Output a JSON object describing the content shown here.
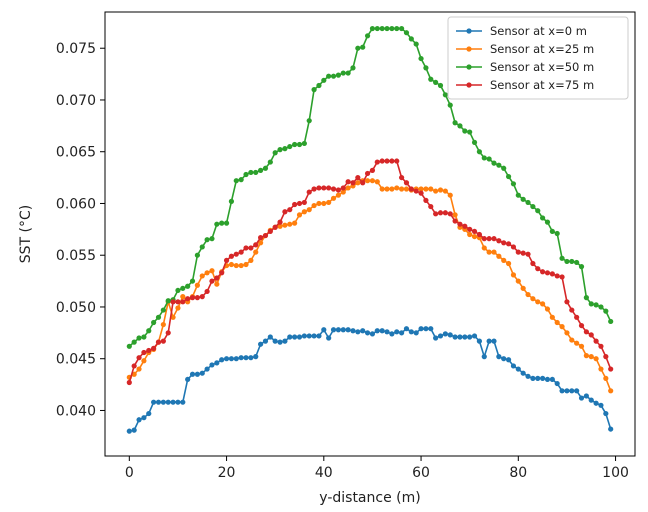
{
  "chart_data": {
    "type": "line",
    "title": "",
    "xlabel": "y-distance (m)",
    "ylabel": "SST (°C)",
    "xlim": [
      -5,
      104
    ],
    "ylim": [
      0.0356,
      0.0785
    ],
    "xticks": [
      0,
      20,
      40,
      60,
      80,
      100
    ],
    "yticks": [
      0.04,
      0.045,
      0.05,
      0.055,
      0.06,
      0.065,
      0.07,
      0.075
    ],
    "ytick_labels": [
      "0.040",
      "0.045",
      "0.050",
      "0.055",
      "0.060",
      "0.065",
      "0.070",
      "0.075"
    ],
    "grid": false,
    "legend_position": "top-right",
    "series": [
      {
        "name": "Sensor at x=0 m",
        "color": "#1f77b4",
        "values": [
          0.038,
          0.0381,
          0.0391,
          0.0393,
          0.0397,
          0.0408,
          0.0408,
          0.0408,
          0.0408,
          0.0408,
          0.0408,
          0.0408,
          0.043,
          0.0435,
          0.0435,
          0.0436,
          0.044,
          0.0444,
          0.0446,
          0.0449,
          0.045,
          0.045,
          0.045,
          0.0451,
          0.0451,
          0.0451,
          0.0452,
          0.0464,
          0.0467,
          0.0471,
          0.0467,
          0.0466,
          0.0467,
          0.0471,
          0.0471,
          0.0471,
          0.0472,
          0.0472,
          0.0472,
          0.0472,
          0.0478,
          0.047,
          0.0478,
          0.0478,
          0.0478,
          0.0478,
          0.0477,
          0.0476,
          0.0477,
          0.0475,
          0.0474,
          0.0477,
          0.0477,
          0.0476,
          0.0474,
          0.0476,
          0.0475,
          0.0479,
          0.0476,
          0.0475,
          0.0479,
          0.0479,
          0.0479,
          0.047,
          0.0472,
          0.0474,
          0.0473,
          0.0471,
          0.0471,
          0.0471,
          0.0471,
          0.0472,
          0.0467,
          0.0452,
          0.0467,
          0.0467,
          0.0452,
          0.045,
          0.0449,
          0.0443,
          0.044,
          0.0436,
          0.0433,
          0.0431,
          0.0431,
          0.0431,
          0.043,
          0.043,
          0.0426,
          0.0419,
          0.0419,
          0.0419,
          0.0419,
          0.0412,
          0.0414,
          0.041,
          0.0407,
          0.0405,
          0.0397,
          0.0382
        ]
      },
      {
        "name": "Sensor at x=25 m",
        "color": "#ff7f0e",
        "values": [
          0.0432,
          0.0435,
          0.044,
          0.0448,
          0.0456,
          0.0459,
          0.0466,
          0.0483,
          0.0505,
          0.049,
          0.0499,
          0.051,
          0.0505,
          0.051,
          0.0521,
          0.053,
          0.0533,
          0.0535,
          0.0522,
          0.0534,
          0.054,
          0.0541,
          0.054,
          0.054,
          0.0541,
          0.0545,
          0.0553,
          0.0562,
          0.0569,
          0.0574,
          0.0577,
          0.0578,
          0.0579,
          0.058,
          0.0581,
          0.0589,
          0.0592,
          0.0594,
          0.0598,
          0.06,
          0.06,
          0.0601,
          0.0605,
          0.0608,
          0.0611,
          0.0615,
          0.0617,
          0.062,
          0.0622,
          0.0622,
          0.0622,
          0.0621,
          0.0614,
          0.0614,
          0.0614,
          0.0615,
          0.0614,
          0.0614,
          0.0613,
          0.0614,
          0.0614,
          0.0614,
          0.0614,
          0.0612,
          0.0613,
          0.0612,
          0.0608,
          0.0589,
          0.0577,
          0.0575,
          0.057,
          0.0568,
          0.0567,
          0.0557,
          0.0553,
          0.0553,
          0.0549,
          0.0545,
          0.0542,
          0.0531,
          0.0525,
          0.0518,
          0.0512,
          0.0508,
          0.0505,
          0.0503,
          0.0498,
          0.049,
          0.0485,
          0.0481,
          0.0475,
          0.0468,
          0.0465,
          0.0462,
          0.0453,
          0.0452,
          0.045,
          0.044,
          0.0431,
          0.0419
        ]
      },
      {
        "name": "Sensor at x=50 m",
        "color": "#2ca02c",
        "values": [
          0.0462,
          0.0466,
          0.047,
          0.0471,
          0.0477,
          0.0485,
          0.049,
          0.0497,
          0.0506,
          0.0507,
          0.0516,
          0.0518,
          0.052,
          0.0525,
          0.055,
          0.0558,
          0.0565,
          0.0566,
          0.058,
          0.0581,
          0.0581,
          0.0602,
          0.0622,
          0.0623,
          0.0628,
          0.063,
          0.063,
          0.0632,
          0.0634,
          0.064,
          0.0649,
          0.0652,
          0.0653,
          0.0655,
          0.0657,
          0.0657,
          0.0658,
          0.068,
          0.071,
          0.0714,
          0.0719,
          0.0723,
          0.0723,
          0.0724,
          0.0726,
          0.0726,
          0.0731,
          0.075,
          0.0751,
          0.0762,
          0.0769,
          0.0769,
          0.0769,
          0.0769,
          0.0769,
          0.0769,
          0.0769,
          0.0765,
          0.0759,
          0.0754,
          0.074,
          0.0731,
          0.072,
          0.0717,
          0.0714,
          0.0705,
          0.0695,
          0.0678,
          0.0675,
          0.067,
          0.0669,
          0.0659,
          0.065,
          0.0644,
          0.0643,
          0.0639,
          0.0637,
          0.0634,
          0.0626,
          0.0619,
          0.0608,
          0.0604,
          0.0601,
          0.0597,
          0.0593,
          0.0586,
          0.0582,
          0.0573,
          0.0571,
          0.0547,
          0.0544,
          0.0544,
          0.0543,
          0.0539,
          0.0509,
          0.0503,
          0.0502,
          0.05,
          0.0496,
          0.0486
        ]
      },
      {
        "name": "Sensor at x=75 m",
        "color": "#d62728",
        "values": [
          0.0427,
          0.0443,
          0.0451,
          0.0456,
          0.0458,
          0.046,
          0.0466,
          0.0467,
          0.0475,
          0.0505,
          0.0505,
          0.0505,
          0.0508,
          0.0509,
          0.0509,
          0.051,
          0.0515,
          0.0525,
          0.0528,
          0.0533,
          0.0545,
          0.0549,
          0.0551,
          0.0553,
          0.0557,
          0.0557,
          0.056,
          0.0567,
          0.0569,
          0.0573,
          0.0577,
          0.0582,
          0.0592,
          0.0594,
          0.0599,
          0.06,
          0.0601,
          0.0611,
          0.0614,
          0.0615,
          0.0615,
          0.0615,
          0.0614,
          0.0613,
          0.0615,
          0.0621,
          0.062,
          0.0625,
          0.062,
          0.0629,
          0.0632,
          0.064,
          0.0641,
          0.0641,
          0.0641,
          0.0641,
          0.0625,
          0.062,
          0.0614,
          0.0612,
          0.061,
          0.0603,
          0.0597,
          0.059,
          0.0591,
          0.0591,
          0.059,
          0.0583,
          0.058,
          0.0578,
          0.0575,
          0.0573,
          0.057,
          0.0566,
          0.0566,
          0.0566,
          0.0564,
          0.0562,
          0.0561,
          0.0558,
          0.0553,
          0.0552,
          0.0551,
          0.0542,
          0.0537,
          0.0534,
          0.0533,
          0.0532,
          0.053,
          0.0529,
          0.0505,
          0.0497,
          0.049,
          0.0482,
          0.0476,
          0.0473,
          0.0467,
          0.0462,
          0.0452,
          0.044
        ]
      }
    ]
  }
}
